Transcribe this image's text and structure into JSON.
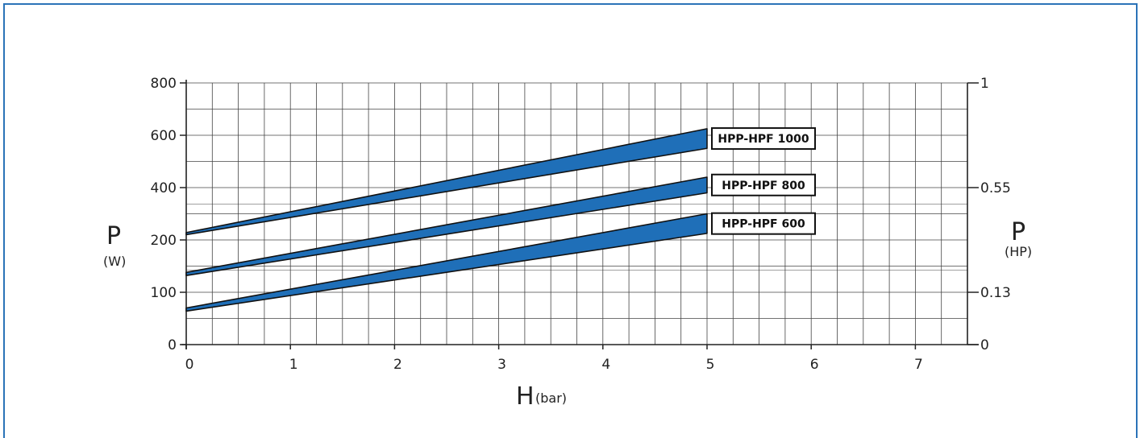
{
  "chart_data": {
    "type": "area",
    "x_label": "H",
    "x_unit": "(bar)",
    "y_label": "P",
    "y_unit": "(W)",
    "y2_label": "P",
    "y2_unit": "(HP)",
    "x_ticks": [
      "0",
      "1",
      "2",
      "3",
      "4",
      "5",
      "6",
      "7"
    ],
    "y_ticks": [
      "0",
      "100",
      "200",
      "400",
      "600",
      "800"
    ],
    "y2_ticks": [
      "0",
      "0.13",
      "0.55",
      "1"
    ],
    "grid": true,
    "colors": {
      "band": "#1f6fb8",
      "grid": "#444444",
      "frame": "#2b73b8"
    },
    "series": [
      {
        "name": "HPP-HPF 1000",
        "x": [
          0,
          5
        ],
        "upper": [
          228,
          625
        ],
        "lower": [
          220,
          550
        ]
      },
      {
        "name": "HPP-HPF 800",
        "x": [
          0,
          5
        ],
        "upper": [
          138,
          440
        ],
        "lower": [
          132,
          380
        ]
      },
      {
        "name": "HPP-HPF 600",
        "x": [
          0,
          5
        ],
        "upper": [
          70,
          300
        ],
        "lower": [
          64,
          225
        ]
      }
    ]
  }
}
